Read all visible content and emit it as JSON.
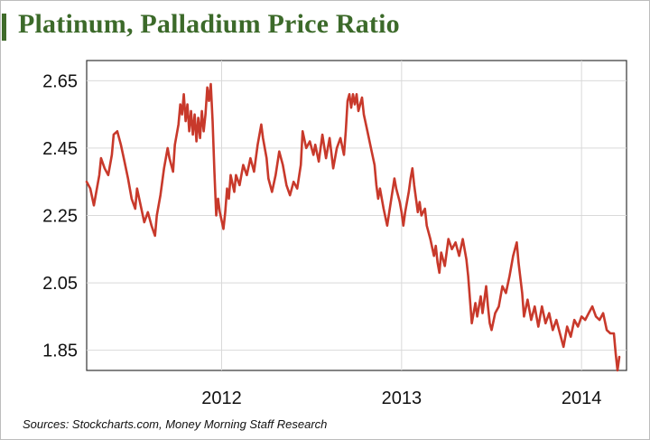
{
  "title": "Platinum, Palladium Price Ratio",
  "source": "Sources: Stockcharts.com, Money Morning Staff Research",
  "colors": {
    "line": "#c8392b",
    "title": "#3c6a2a",
    "grid": "#d9d9d9"
  },
  "chart_data": {
    "type": "line",
    "title": "Platinum, Palladium Price Ratio",
    "xlabel": "",
    "ylabel": "",
    "grid": true,
    "legend": "none",
    "xlim": [
      2011.25,
      2014.25
    ],
    "ylim": [
      1.79,
      2.71
    ],
    "y_ticks": [
      {
        "value": 1.85,
        "label": "1.85"
      },
      {
        "value": 2.05,
        "label": "2.05"
      },
      {
        "value": 2.25,
        "label": "2.25"
      },
      {
        "value": 2.45,
        "label": "2.45"
      },
      {
        "value": 2.65,
        "label": "2.65"
      }
    ],
    "x_ticks": [
      {
        "value": 2012.0,
        "label": "2012"
      },
      {
        "value": 2013.0,
        "label": "2013"
      },
      {
        "value": 2014.0,
        "label": "2014"
      }
    ],
    "series": [
      {
        "values": [
          [
            2011.25,
            2.35
          ],
          [
            2011.27,
            2.33
          ],
          [
            2011.29,
            2.28
          ],
          [
            2011.31,
            2.34
          ],
          [
            2011.32,
            2.37
          ],
          [
            2011.33,
            2.42
          ],
          [
            2011.35,
            2.39
          ],
          [
            2011.37,
            2.37
          ],
          [
            2011.39,
            2.43
          ],
          [
            2011.4,
            2.49
          ],
          [
            2011.42,
            2.5
          ],
          [
            2011.44,
            2.46
          ],
          [
            2011.46,
            2.41
          ],
          [
            2011.48,
            2.36
          ],
          [
            2011.5,
            2.3
          ],
          [
            2011.52,
            2.27
          ],
          [
            2011.53,
            2.33
          ],
          [
            2011.55,
            2.28
          ],
          [
            2011.57,
            2.23
          ],
          [
            2011.59,
            2.26
          ],
          [
            2011.61,
            2.22
          ],
          [
            2011.63,
            2.19
          ],
          [
            2011.64,
            2.25
          ],
          [
            2011.66,
            2.31
          ],
          [
            2011.68,
            2.39
          ],
          [
            2011.7,
            2.45
          ],
          [
            2011.71,
            2.42
          ],
          [
            2011.73,
            2.38
          ],
          [
            2011.74,
            2.46
          ],
          [
            2011.76,
            2.52
          ],
          [
            2011.77,
            2.58
          ],
          [
            2011.78,
            2.55
          ],
          [
            2011.79,
            2.61
          ],
          [
            2011.8,
            2.53
          ],
          [
            2011.81,
            2.58
          ],
          [
            2011.82,
            2.5
          ],
          [
            2011.83,
            2.56
          ],
          [
            2011.84,
            2.49
          ],
          [
            2011.85,
            2.55
          ],
          [
            2011.86,
            2.47
          ],
          [
            2011.87,
            2.54
          ],
          [
            2011.88,
            2.48
          ],
          [
            2011.89,
            2.56
          ],
          [
            2011.9,
            2.5
          ],
          [
            2011.91,
            2.55
          ],
          [
            2011.92,
            2.63
          ],
          [
            2011.93,
            2.59
          ],
          [
            2011.94,
            2.64
          ],
          [
            2011.95,
            2.53
          ],
          [
            2011.96,
            2.38
          ],
          [
            2011.97,
            2.25
          ],
          [
            2011.98,
            2.3
          ],
          [
            2011.99,
            2.26
          ],
          [
            2012.01,
            2.21
          ],
          [
            2012.02,
            2.26
          ],
          [
            2012.03,
            2.33
          ],
          [
            2012.04,
            2.3
          ],
          [
            2012.05,
            2.37
          ],
          [
            2012.07,
            2.32
          ],
          [
            2012.08,
            2.37
          ],
          [
            2012.1,
            2.34
          ],
          [
            2012.12,
            2.4
          ],
          [
            2012.14,
            2.37
          ],
          [
            2012.16,
            2.42
          ],
          [
            2012.18,
            2.38
          ],
          [
            2012.2,
            2.46
          ],
          [
            2012.22,
            2.52
          ],
          [
            2012.23,
            2.48
          ],
          [
            2012.25,
            2.42
          ],
          [
            2012.26,
            2.36
          ],
          [
            2012.28,
            2.32
          ],
          [
            2012.3,
            2.37
          ],
          [
            2012.32,
            2.44
          ],
          [
            2012.34,
            2.4
          ],
          [
            2012.36,
            2.34
          ],
          [
            2012.38,
            2.31
          ],
          [
            2012.4,
            2.35
          ],
          [
            2012.42,
            2.33
          ],
          [
            2012.44,
            2.4
          ],
          [
            2012.45,
            2.5
          ],
          [
            2012.47,
            2.45
          ],
          [
            2012.49,
            2.47
          ],
          [
            2012.51,
            2.43
          ],
          [
            2012.52,
            2.46
          ],
          [
            2012.54,
            2.41
          ],
          [
            2012.56,
            2.49
          ],
          [
            2012.58,
            2.42
          ],
          [
            2012.6,
            2.48
          ],
          [
            2012.62,
            2.39
          ],
          [
            2012.64,
            2.45
          ],
          [
            2012.66,
            2.48
          ],
          [
            2012.68,
            2.43
          ],
          [
            2012.69,
            2.5
          ],
          [
            2012.7,
            2.59
          ],
          [
            2012.71,
            2.61
          ],
          [
            2012.72,
            2.57
          ],
          [
            2012.73,
            2.61
          ],
          [
            2012.74,
            2.58
          ],
          [
            2012.75,
            2.61
          ],
          [
            2012.76,
            2.56
          ],
          [
            2012.78,
            2.6
          ],
          [
            2012.79,
            2.55
          ],
          [
            2012.81,
            2.5
          ],
          [
            2012.83,
            2.45
          ],
          [
            2012.85,
            2.4
          ],
          [
            2012.86,
            2.34
          ],
          [
            2012.87,
            2.3
          ],
          [
            2012.88,
            2.33
          ],
          [
            2012.9,
            2.27
          ],
          [
            2012.92,
            2.22
          ],
          [
            2012.94,
            2.29
          ],
          [
            2012.96,
            2.36
          ],
          [
            2012.97,
            2.33
          ],
          [
            2012.99,
            2.29
          ],
          [
            2013.0,
            2.26
          ],
          [
            2013.01,
            2.22
          ],
          [
            2013.02,
            2.26
          ],
          [
            2013.04,
            2.32
          ],
          [
            2013.05,
            2.36
          ],
          [
            2013.06,
            2.39
          ],
          [
            2013.07,
            2.34
          ],
          [
            2013.08,
            2.3
          ],
          [
            2013.09,
            2.26
          ],
          [
            2013.1,
            2.29
          ],
          [
            2013.11,
            2.25
          ],
          [
            2013.13,
            2.27
          ],
          [
            2013.14,
            2.22
          ],
          [
            2013.16,
            2.18
          ],
          [
            2013.18,
            2.13
          ],
          [
            2013.19,
            2.16
          ],
          [
            2013.2,
            2.11
          ],
          [
            2013.21,
            2.08
          ],
          [
            2013.22,
            2.14
          ],
          [
            2013.24,
            2.1
          ],
          [
            2013.26,
            2.18
          ],
          [
            2013.28,
            2.15
          ],
          [
            2013.3,
            2.17
          ],
          [
            2013.32,
            2.13
          ],
          [
            2013.34,
            2.18
          ],
          [
            2013.36,
            2.12
          ],
          [
            2013.37,
            2.07
          ],
          [
            2013.38,
            2.0
          ],
          [
            2013.39,
            1.93
          ],
          [
            2013.41,
            1.99
          ],
          [
            2013.42,
            1.95
          ],
          [
            2013.44,
            2.01
          ],
          [
            2013.45,
            1.96
          ],
          [
            2013.47,
            2.04
          ],
          [
            2013.48,
            1.98
          ],
          [
            2013.49,
            1.93
          ],
          [
            2013.5,
            1.91
          ],
          [
            2013.52,
            1.96
          ],
          [
            2013.54,
            1.98
          ],
          [
            2013.56,
            2.04
          ],
          [
            2013.58,
            2.02
          ],
          [
            2013.6,
            2.07
          ],
          [
            2013.62,
            2.13
          ],
          [
            2013.64,
            2.17
          ],
          [
            2013.65,
            2.11
          ],
          [
            2013.67,
            2.02
          ],
          [
            2013.68,
            1.95
          ],
          [
            2013.7,
            2.0
          ],
          [
            2013.72,
            1.94
          ],
          [
            2013.74,
            1.98
          ],
          [
            2013.76,
            1.92
          ],
          [
            2013.78,
            1.98
          ],
          [
            2013.8,
            1.93
          ],
          [
            2013.82,
            1.96
          ],
          [
            2013.84,
            1.91
          ],
          [
            2013.86,
            1.94
          ],
          [
            2013.88,
            1.9
          ],
          [
            2013.9,
            1.86
          ],
          [
            2013.92,
            1.92
          ],
          [
            2013.94,
            1.89
          ],
          [
            2013.96,
            1.94
          ],
          [
            2013.98,
            1.92
          ],
          [
            2014.0,
            1.95
          ],
          [
            2014.02,
            1.94
          ],
          [
            2014.04,
            1.96
          ],
          [
            2014.06,
            1.98
          ],
          [
            2014.08,
            1.95
          ],
          [
            2014.1,
            1.94
          ],
          [
            2014.12,
            1.96
          ],
          [
            2014.14,
            1.91
          ],
          [
            2014.16,
            1.9
          ],
          [
            2014.18,
            1.9
          ],
          [
            2014.19,
            1.84
          ],
          [
            2014.2,
            1.79
          ],
          [
            2014.21,
            1.83
          ]
        ]
      }
    ]
  }
}
